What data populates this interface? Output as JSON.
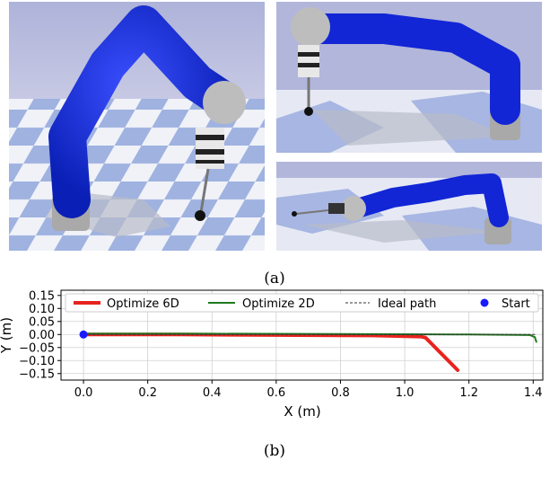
{
  "captions": {
    "a": "(a)",
    "b": "(b)"
  },
  "chart_data": {
    "type": "line",
    "xlabel": "X (m)",
    "ylabel": "Y (m)",
    "xlim": [
      -0.07,
      1.43
    ],
    "ylim": [
      -0.175,
      0.17
    ],
    "xticks": [
      0.0,
      0.2,
      0.4,
      0.6,
      0.8,
      1.0,
      1.2,
      1.4
    ],
    "xtick_labels": [
      "0.0",
      "0.2",
      "0.4",
      "0.6",
      "0.8",
      "1.0",
      "1.2",
      "1.4"
    ],
    "yticks": [
      0.15,
      0.1,
      0.05,
      0.0,
      -0.05,
      -0.1,
      -0.15
    ],
    "ytick_labels": [
      "0.15",
      "0.10",
      "0.05",
      "0.00",
      "−0.05",
      "−0.10",
      "−0.15"
    ],
    "grid": true,
    "legend_position": "top",
    "series": [
      {
        "name": "Optimize 6D",
        "color": "#e8231f",
        "x": [
          0.0,
          0.3,
          0.6,
          0.9,
          1.05,
          1.065,
          1.165
        ],
        "y": [
          0.0,
          0.0,
          -0.002,
          -0.004,
          -0.008,
          -0.012,
          -0.137
        ]
      },
      {
        "name": "Optimize 2D",
        "color": "#1f7a1f",
        "x": [
          0.0,
          0.4,
          0.8,
          1.2,
          1.39,
          1.405,
          1.41
        ],
        "y": [
          0.003,
          0.003,
          0.002,
          0.0,
          -0.002,
          -0.01,
          -0.028
        ]
      },
      {
        "name": "Ideal path",
        "color": "#333333",
        "dashed": true,
        "x": [
          0.0,
          1.41
        ],
        "y": [
          0.0,
          0.0
        ]
      }
    ],
    "points": [
      {
        "name": "Start",
        "color": "#1a1aff",
        "x": 0.0,
        "y": 0.0
      }
    ]
  }
}
